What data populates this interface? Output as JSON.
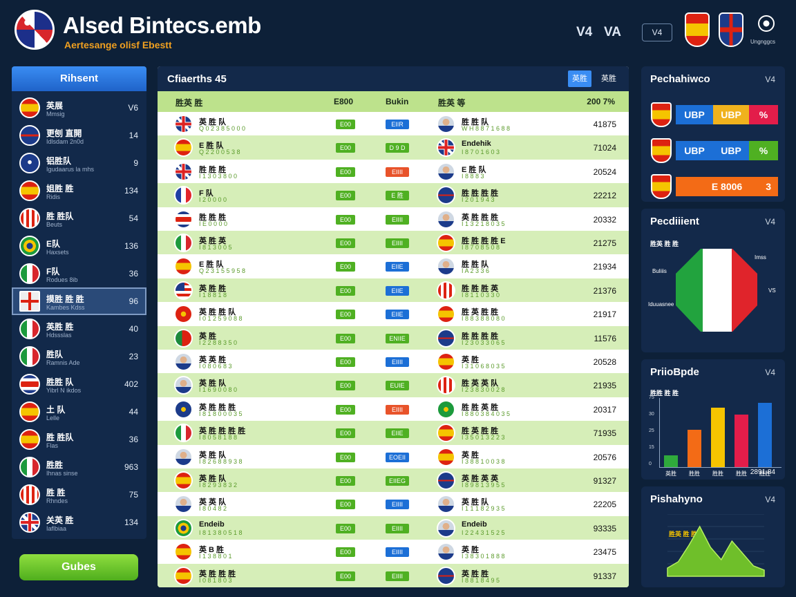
{
  "header": {
    "title": "Alsed Bintecs.emb",
    "subtitle": "Aertesange olisf Ebestt",
    "mode_a": "V4",
    "mode_b": "VA",
    "chip": "V4",
    "ball_label": "Ungnggcs"
  },
  "left": {
    "title": "Rihsent",
    "button": "Gubes",
    "items": [
      {
        "name": "英展",
        "sub": "Mmsig",
        "num": "V6",
        "flag": "spain"
      },
      {
        "name": "更刨 直開",
        "sub": "Idlsdam 2n0d",
        "num": "14",
        "flag": "dkblue"
      },
      {
        "name": "铝胜队",
        "sub": "Igudaarus la mhs",
        "num": "9",
        "flag": "blue"
      },
      {
        "name": "姐胜 胜",
        "sub": "Ridis",
        "num": "134",
        "flag": "spain"
      },
      {
        "name": "胜 胜队",
        "sub": "Beuts",
        "num": "54",
        "flag": "stripe"
      },
      {
        "name": "E队",
        "sub": "Haxsets",
        "num": "136",
        "flag": "brazil"
      },
      {
        "name": "F队",
        "sub": "Rodues 8ib",
        "num": "36",
        "flag": "italy"
      },
      {
        "name": "摸胜 胜 胜",
        "sub": "Kambes Kdss",
        "num": "96",
        "flag": "cross"
      },
      {
        "name": "英胜 胜",
        "sub": "Hdssslas",
        "num": "40",
        "flag": "italy"
      },
      {
        "name": "胜队",
        "sub": "Ramnis Ade",
        "num": "23",
        "flag": "italy"
      },
      {
        "name": "胜胜 队",
        "sub": "Yibrl N ikdos",
        "num": "402",
        "flag": "costa"
      },
      {
        "name": "土 队",
        "sub": "Lelle",
        "num": "44",
        "flag": "spain"
      },
      {
        "name": "胜 胜队",
        "sub": "Flas",
        "num": "36",
        "flag": "spain"
      },
      {
        "name": "胜胜",
        "sub": "Ihnas sinse",
        "num": "963",
        "flag": "italy"
      },
      {
        "name": "胜 胜",
        "sub": "Rhndes",
        "num": "75",
        "flag": "stripe"
      },
      {
        "name": "关英 胜",
        "sub": "Iaflbiaa",
        "num": "134",
        "flag": "uk"
      }
    ]
  },
  "main": {
    "title": "Cfiaerths 45",
    "tab_a": "英胜",
    "tab_b": "英胜",
    "columns": {
      "c1": "胜英 胜",
      "c2": "E800",
      "c3": "Bukin",
      "c4": "胜英 等",
      "c5": "200 7%"
    },
    "rows": [
      {
        "f1": "uk",
        "n1": "英 胜 队",
        "s1": "Q 0 2 3 8 5 0 0 0",
        "badge": "E00",
        "pill": "EIIR",
        "pc": "#1c6fd6",
        "f2": "player",
        "n2": "胜 胜 队",
        "s2": "W H 8 8 7 1 6 8 8",
        "score": "41875"
      },
      {
        "f1": "spain",
        "n1": "E 胜 队",
        "s1": "Q 2 2 0 0 5 3 8",
        "badge": "E00",
        "pill": "D 9 D",
        "pc": "#4fb022",
        "f2": "uk",
        "n2": "Endehik",
        "s2": "I 8 7 0 1 6 0 3",
        "score": "71024"
      },
      {
        "f1": "uk",
        "n1": "胜 胜 胜",
        "s1": "I 1 3 0 3 8 0 0",
        "badge": "E00",
        "pill": "EIIII",
        "pc": "#e8532a",
        "f2": "player",
        "n2": "E 胜 队",
        "s2": "I 8 8 8 3",
        "score": "20524"
      },
      {
        "f1": "france",
        "n1": "F 队",
        "s1": "I 2 0 0 0 0",
        "badge": "E00",
        "pill": "E 胜",
        "pc": "#4fb022",
        "f2": "dkblue",
        "n2": "胜 胜 胜 胜",
        "s2": "I 2 0 1 9 4 3",
        "score": "22212"
      },
      {
        "f1": "costa",
        "n1": "胜 胜 胜",
        "s1": "I E 0 0 0 0",
        "badge": "E00",
        "pill": "EIIII",
        "pc": "#4fb022",
        "f2": "player",
        "n2": "英 胜 胜 胜",
        "s2": "I 1 3 2 1 8 0 3 5",
        "score": "20332"
      },
      {
        "f1": "italy",
        "n1": "英 胜 英",
        "s1": "I 8 1 3 0 0 5",
        "badge": "E00",
        "pill": "EIIII",
        "pc": "#4fb022",
        "f2": "spain",
        "n2": "胜 胜 胜 胜 E",
        "s2": "I 8 7 0 8 5 0 8",
        "score": "21275"
      },
      {
        "f1": "spain",
        "n1": "E 胜 队",
        "s1": "Q 2 3 1 5 5 9 5 8",
        "badge": "E00",
        "pill": "EIIE",
        "pc": "#1c6fd6",
        "f2": "player",
        "n2": "胜 胜 队",
        "s2": "I A 2 3 3 6",
        "score": "21934"
      },
      {
        "f1": "usa",
        "n1": "英 胜 胜",
        "s1": "I 1 8 8 1 8",
        "badge": "E00",
        "pill": "EIIE",
        "pc": "#1c6fd6",
        "f2": "stripe",
        "n2": "胜 胜 胜 英",
        "s2": "I 8 1 1 0 3 3 0",
        "score": "21376"
      },
      {
        "f1": "red",
        "n1": "英 胜 胜 队",
        "s1": "I 0 1 2 5 9 0 8 8",
        "badge": "E00",
        "pill": "EIIE",
        "pc": "#1c6fd6",
        "f2": "spain",
        "n2": "胜 英 胜 胜",
        "s2": "I 8 8 3 8 8 0 8 0",
        "score": "21917"
      },
      {
        "f1": "port",
        "n1": "英 胜",
        "s1": "I 2 2 8 8 3 5 0",
        "badge": "E00",
        "pill": "ENIIE",
        "pc": "#4fb022",
        "f2": "dkblue",
        "n2": "胜 胜 胜 胜",
        "s2": "I 2 3 0 3 3 0 6 5",
        "score": "11576"
      },
      {
        "f1": "player",
        "n1": "英 英 胜",
        "s1": "I 0 8 0 6 8 3",
        "badge": "E00",
        "pill": "EIIII",
        "pc": "#1c6fd6",
        "f2": "spain",
        "n2": "英 胜",
        "s2": "I 3 1 0 6 8 0 3 5",
        "score": "20528"
      },
      {
        "f1": "player",
        "n1": "英 胜 队",
        "s1": "I 1 6 9 0 0 8 0",
        "badge": "E00",
        "pill": "EUIE",
        "pc": "#4fb022",
        "f2": "stripe",
        "n2": "胜 英 英 队",
        "s2": "I 2 3 8 3 0 0 2 8",
        "score": "21935"
      },
      {
        "f1": "euro",
        "n1": "英 胜 胜 胜",
        "s1": "I 8 1 8 0 0 0 3 5",
        "badge": "E00",
        "pill": "EIIII",
        "pc": "#e8532a",
        "f2": "green",
        "n2": "胜 胜 英 胜",
        "s2": "I 8 8 0 3 8 4 0 3 5",
        "score": "20317"
      },
      {
        "f1": "italy",
        "n1": "英 胜 胜 胜 胜",
        "s1": "I 8 0 5 8 1 8 8",
        "badge": "E00",
        "pill": "EIIE",
        "pc": "#4fb022",
        "f2": "spain",
        "n2": "胜 英 胜 胜",
        "s2": "I 3 5 0 1 3 2 2 3",
        "score": "71935"
      },
      {
        "f1": "player",
        "n1": "英 胜 队",
        "s1": "I 8 2 6 8 8 9 3 8",
        "badge": "E00",
        "pill": "EOEII",
        "pc": "#1c6fd6",
        "f2": "spain",
        "n2": "英 胜",
        "s2": "I 3 8 8 1 0 0 3 8",
        "score": "20576"
      },
      {
        "f1": "spain",
        "n1": "英 胜 队",
        "s1": "I 8 2 9 3 8 3 2",
        "badge": "E00",
        "pill": "EIIEG",
        "pc": "#4fb022",
        "f2": "dkblue",
        "n2": "英 胜 英 英",
        "s2": "I 8 9 8 1 3 9 5 5",
        "score": "91327"
      },
      {
        "f1": "player",
        "n1": "英 英 队",
        "s1": "I 8 0 4 8 2",
        "badge": "E00",
        "pill": "EIIII",
        "pc": "#1c6fd6",
        "f2": "player",
        "n2": "英 胜 队",
        "s2": "I 1 1 1 8 2 9 3 5",
        "score": "22205"
      },
      {
        "f1": "brazil",
        "n1": "Endeib",
        "s1": "I 8 1 3 8 0 5 1 8",
        "badge": "E00",
        "pill": "EIIII",
        "pc": "#4fb022",
        "f2": "player",
        "n2": "Endeib",
        "s2": "I 2 2 4 3 1 5 2 5",
        "score": "93335"
      },
      {
        "f1": "spain",
        "n1": "英 B 胜",
        "s1": "I 1 3 8 8 0 1",
        "badge": "E00",
        "pill": "EIIII",
        "pc": "#1c6fd6",
        "f2": "player",
        "n2": "英 胜",
        "s2": "I 3 8 3 0 1 8 8 8",
        "score": "23475"
      },
      {
        "f1": "spain",
        "n1": "英 胜 胜 胜",
        "s1": "I 0 8 1 8 0 3",
        "badge": "E00",
        "pill": "EIIII",
        "pc": "#4fb022",
        "f2": "dkblue",
        "n2": "英 胜 胜",
        "s2": "I 8 8 1 8 4 9 5",
        "score": "91337"
      }
    ]
  },
  "panel1": {
    "title": "Pechahiwco",
    "num": "V4",
    "rows": [
      {
        "a": "UBP",
        "b": "UBP",
        "c": "%",
        "ca": "#1c6fd6",
        "cb": "#f0b21d",
        "cc": "#e31d4a"
      },
      {
        "a": "UBP",
        "b": "UBP",
        "c": "%",
        "ca": "#1c6fd6",
        "cb": "#1c6fd6",
        "cc": "#4fb022"
      },
      {
        "a": "E 8006",
        "b": "",
        "c": "3",
        "ca": "#f36b16",
        "cb": "#f36b16",
        "cc": "#f36b16"
      }
    ]
  },
  "panel2": {
    "title": "Pecdiiient",
    "num": "V4",
    "top_label": "胜英 胜 胜",
    "labels": [
      "Buliiis",
      "Imss",
      "VS",
      "Iduuasnee"
    ]
  },
  "panel3": {
    "title": "PriioBpde",
    "num": "V4",
    "top_label": "胜胜 胜 胜",
    "footer": "2891 84",
    "chart_data": {
      "type": "bar",
      "categories": [
        "英胜",
        "胜胜",
        "胜胜",
        "胜胜",
        "胜胜"
      ],
      "values": [
        12,
        38,
        60,
        53,
        65
      ],
      "colors": [
        "#2faa3c",
        "#f36b16",
        "#f5c400",
        "#e31d4a",
        "#1c6fd6"
      ]
    }
  },
  "panel4": {
    "title": "Pishahyno",
    "num": "V4",
    "top_label": "胜英 胜 胜",
    "chart_data": {
      "type": "area",
      "values": [
        8,
        14,
        30,
        48,
        28,
        16,
        34,
        22,
        10,
        6
      ]
    }
  }
}
